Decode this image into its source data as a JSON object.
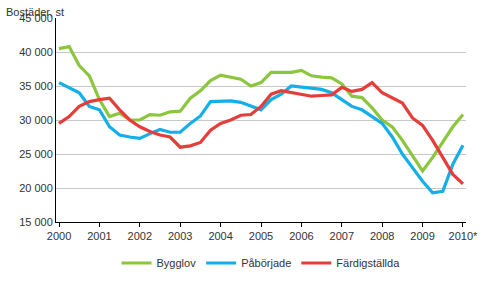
{
  "chart_data": {
    "type": "line",
    "y_label": "Bostäder, st",
    "categories": [
      "2000",
      null,
      null,
      null,
      "2001",
      null,
      null,
      null,
      "2002",
      null,
      null,
      null,
      "2003",
      null,
      null,
      null,
      "2004",
      null,
      null,
      null,
      "2005",
      null,
      null,
      null,
      "2006",
      null,
      null,
      null,
      "2007",
      null,
      null,
      null,
      "2008",
      null,
      null,
      null,
      "2009",
      null,
      null,
      null,
      "2010*"
    ],
    "series": [
      {
        "name": "Bygglov",
        "color": "#8cc63e",
        "values": [
          40500,
          40800,
          38000,
          36500,
          33000,
          30500,
          31000,
          30000,
          30000,
          30800,
          30700,
          31200,
          31300,
          33200,
          34300,
          35800,
          36600,
          36300,
          36000,
          35000,
          35500,
          37000,
          37000,
          37000,
          37300,
          36500,
          36300,
          36200,
          35300,
          33500,
          33300,
          31800,
          30000,
          29000,
          27000,
          24800,
          22500,
          24500,
          26800,
          29000,
          30800
        ]
      },
      {
        "name": "Påbörjade",
        "color": "#14aee8",
        "values": [
          35500,
          34800,
          34000,
          32000,
          31500,
          29000,
          27800,
          27500,
          27300,
          28000,
          28600,
          28200,
          28200,
          29500,
          30600,
          32700,
          32800,
          32800,
          32600,
          32000,
          31500,
          33000,
          33800,
          35000,
          34800,
          34600,
          34500,
          34000,
          33000,
          32000,
          31500,
          30500,
          29500,
          27500,
          25000,
          23000,
          21000,
          19300,
          19500,
          23500,
          26300
        ]
      },
      {
        "name": "Färdigställda",
        "color": "#e53e3a",
        "values": [
          29500,
          30500,
          32000,
          32700,
          33000,
          33200,
          31500,
          30000,
          29000,
          28300,
          27800,
          27500,
          26000,
          26200,
          26700,
          28500,
          29500,
          30000,
          30700,
          30800,
          32000,
          33800,
          34300,
          34000,
          33800,
          33500,
          33600,
          33700,
          34800,
          34200,
          34500,
          35500,
          34000,
          33200,
          32500,
          30300,
          29200,
          27000,
          24500,
          22000,
          20600
        ]
      }
    ],
    "ylim": [
      15000,
      45000
    ],
    "yticks": [
      {
        "value": 15000,
        "label": "15 000"
      },
      {
        "value": 20000,
        "label": "20 000"
      },
      {
        "value": 25000,
        "label": "25 000"
      },
      {
        "value": 30000,
        "label": "30 000"
      },
      {
        "value": 35000,
        "label": "35 000"
      },
      {
        "value": 40000,
        "label": "40 000"
      },
      {
        "value": 45000,
        "label": "45 000"
      }
    ],
    "grid": true,
    "legend": "bottom"
  }
}
